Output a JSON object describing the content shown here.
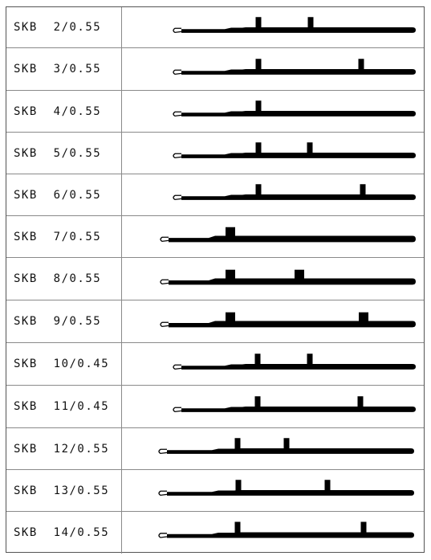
{
  "colors": {
    "ink": "#000000",
    "grid": "#8a8a8a"
  },
  "needles": [
    {
      "label": "SKB  2/0.55",
      "type": "short",
      "butts": [
        "tall",
        "tall"
      ],
      "pos": [
        "mid",
        "mid"
      ]
    },
    {
      "label": "SKB  3/0.55",
      "type": "short",
      "butts": [
        "tall",
        "tall"
      ],
      "pos": [
        "mid",
        "far"
      ]
    },
    {
      "label": "SKB  4/0.55",
      "type": "short",
      "butts": [
        "tall"
      ],
      "pos": [
        "mid"
      ]
    },
    {
      "label": "SKB  5/0.55",
      "type": "short",
      "butts": [
        "tall",
        "tall"
      ],
      "pos": [
        "mid",
        "mid"
      ]
    },
    {
      "label": "SKB  6/0.55",
      "type": "short",
      "butts": [
        "tall",
        "tall"
      ],
      "pos": [
        "mid",
        "far"
      ]
    },
    {
      "label": "SKB  7/0.55",
      "type": "long",
      "butts": [
        "wide"
      ],
      "pos": [
        "near"
      ]
    },
    {
      "label": "SKB  8/0.55",
      "type": "long",
      "butts": [
        "wide",
        "wide"
      ],
      "pos": [
        "near",
        "mid"
      ]
    },
    {
      "label": "SKB  9/0.55",
      "type": "long",
      "butts": [
        "wide",
        "wide"
      ],
      "pos": [
        "near",
        "far"
      ]
    },
    {
      "label": "SKB  10/0.45",
      "type": "short",
      "butts": [
        "tall",
        "tall"
      ],
      "pos": [
        "mid",
        "mid"
      ]
    },
    {
      "label": "SKB  11/0.45",
      "type": "short",
      "butts": [
        "tall",
        "tall"
      ],
      "pos": [
        "mid",
        "far"
      ]
    },
    {
      "label": "SKB  12/0.55",
      "type": "xlong",
      "butts": [
        "tall",
        "tall"
      ],
      "pos": [
        "near",
        "mid"
      ]
    },
    {
      "label": "SKB  13/0.55",
      "type": "xlong",
      "butts": [
        "tall",
        "tall"
      ],
      "pos": [
        "near",
        "far"
      ]
    },
    {
      "label": "SKB  14/0.55",
      "type": "xlong",
      "butts": [
        "tall",
        "tall"
      ],
      "pos": [
        "near",
        "far"
      ]
    }
  ]
}
